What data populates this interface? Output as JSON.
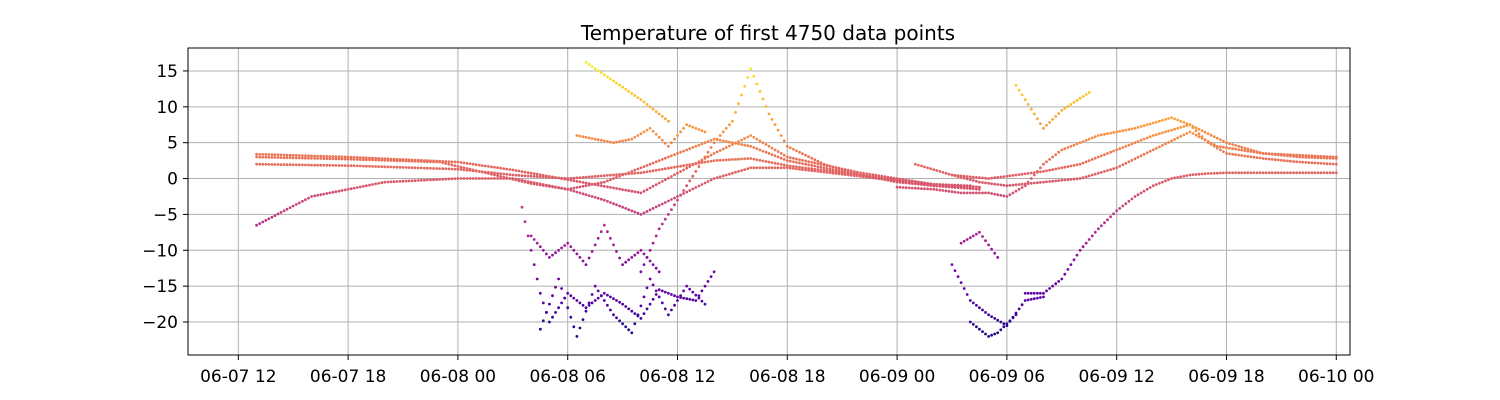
{
  "chart_data": {
    "type": "scatter",
    "title": "Temperature of first 4750 data points",
    "xlabel": "",
    "ylabel": "",
    "x_type": "datetime",
    "xlim": [
      "2023-06-07T09:15",
      "2023-06-10T00:45"
    ],
    "ylim": [
      -24.6,
      18.2
    ],
    "x_ticks": [
      {
        "value": "2023-06-07T12:00",
        "label": "06-07 12"
      },
      {
        "value": "2023-06-07T18:00",
        "label": "06-07 18"
      },
      {
        "value": "2023-06-08T00:00",
        "label": "06-08 00"
      },
      {
        "value": "2023-06-08T06:00",
        "label": "06-08 06"
      },
      {
        "value": "2023-06-08T12:00",
        "label": "06-08 12"
      },
      {
        "value": "2023-06-08T18:00",
        "label": "06-08 18"
      },
      {
        "value": "2023-06-09T00:00",
        "label": "06-09 00"
      },
      {
        "value": "2023-06-09T06:00",
        "label": "06-09 06"
      },
      {
        "value": "2023-06-09T12:00",
        "label": "06-09 12"
      },
      {
        "value": "2023-06-09T18:00",
        "label": "06-09 18"
      },
      {
        "value": "2023-06-10T00:00",
        "label": "06-10 00"
      }
    ],
    "y_ticks": [
      {
        "value": 15,
        "label": "15"
      },
      {
        "value": 10,
        "label": "10"
      },
      {
        "value": 5,
        "label": "5"
      },
      {
        "value": 0,
        "label": "0"
      },
      {
        "value": -5,
        "label": "−5"
      },
      {
        "value": -10,
        "label": "−10"
      },
      {
        "value": -15,
        "label": "−15"
      },
      {
        "value": -20,
        "label": "−20"
      }
    ],
    "grid": true,
    "colormap": "plasma",
    "color_range": [
      -23,
      16.5
    ],
    "series": [
      {
        "x": [
          "2023-06-07T13:00",
          "2023-06-07T18:00",
          "2023-06-08T00:00",
          "2023-06-08T03:00",
          "2023-06-08T06:00",
          "2023-06-08T10:00",
          "2023-06-08T14:00",
          "2023-06-08T16:00",
          "2023-06-08T18:00",
          "2023-06-08T22:00",
          "2023-06-09T02:00",
          "2023-06-09T03:30",
          "2023-06-09T04:30"
        ],
        "y": [
          2.0,
          1.8,
          1.3,
          0.5,
          0.0,
          0.8,
          2.5,
          2.8,
          1.8,
          0.5,
          -0.8,
          -1.0,
          -1.2
        ]
      },
      {
        "x": [
          "2023-06-07T13:00",
          "2023-06-07T18:00",
          "2023-06-08T00:00",
          "2023-06-08T03:00",
          "2023-06-08T05:00",
          "2023-06-08T10:00",
          "2023-06-08T14:00",
          "2023-06-08T16:00",
          "2023-06-08T18:00",
          "2023-06-08T22:00",
          "2023-06-09T02:00",
          "2023-06-09T04:00"
        ],
        "y": [
          3.4,
          3.0,
          2.3,
          1.2,
          0.3,
          -2.0,
          3.5,
          6.0,
          3.0,
          0.8,
          -0.8,
          -1.0
        ]
      },
      {
        "x": [
          "2023-06-07T13:00",
          "2023-06-07T18:00",
          "2023-06-07T23:00",
          "2023-06-08T02:00",
          "2023-06-08T04:00",
          "2023-06-08T06:00",
          "2023-06-08T08:00",
          "2023-06-08T10:00",
          "2023-06-08T12:00",
          "2023-06-08T14:00",
          "2023-06-08T16:00",
          "2023-06-08T18:00",
          "2023-06-08T22:00",
          "2023-06-09T02:00",
          "2023-06-09T04:00"
        ],
        "y": [
          3.0,
          2.7,
          2.3,
          0.5,
          -0.7,
          -1.5,
          -0.5,
          1.5,
          3.5,
          5.5,
          4.5,
          2.5,
          0.5,
          -1.0,
          -1.3
        ]
      },
      {
        "x": [
          "2023-06-07T13:00",
          "2023-06-07T16:00",
          "2023-06-07T20:00",
          "2023-06-08T00:00",
          "2023-06-08T03:00",
          "2023-06-08T06:00",
          "2023-06-08T08:00",
          "2023-06-08T10:00",
          "2023-06-08T12:00",
          "2023-06-08T14:00",
          "2023-06-08T16:00",
          "2023-06-08T18:00",
          "2023-06-08T22:00",
          "2023-06-09T02:00",
          "2023-06-09T04:30"
        ],
        "y": [
          -6.5,
          -2.5,
          -0.5,
          0.0,
          0.0,
          -1.5,
          -3.0,
          -5.0,
          -2.5,
          0.0,
          1.5,
          1.5,
          0.3,
          -1.0,
          -1.5
        ]
      },
      {
        "x": [
          "2023-06-08T10:00",
          "2023-06-08T11:00",
          "2023-06-08T12:00",
          "2023-06-08T13:00",
          "2023-06-08T14:00",
          "2023-06-08T15:00",
          "2023-06-08T16:00",
          "2023-06-08T17:00",
          "2023-06-08T18:00",
          "2023-06-08T20:00",
          "2023-06-08T22:00",
          "2023-06-09T00:00",
          "2023-06-09T02:00"
        ],
        "y": [
          -13.0,
          -7.0,
          -3.0,
          1.0,
          5.0,
          8.0,
          15.3,
          9.0,
          4.5,
          2.0,
          0.5,
          -0.5,
          -1.0
        ]
      },
      {
        "x": [
          "2023-06-08T06:30",
          "2023-06-08T07:30",
          "2023-06-08T08:30",
          "2023-06-08T09:30",
          "2023-06-08T10:30",
          "2023-06-08T11:30",
          "2023-06-08T12:30",
          "2023-06-08T13:30"
        ],
        "y": [
          6.0,
          5.5,
          5.0,
          5.5,
          7.0,
          4.5,
          7.5,
          6.5
        ]
      },
      {
        "x": [
          "2023-06-08T03:30",
          "2023-06-08T04:30",
          "2023-06-08T05:00",
          "2023-06-08T05:30",
          "2023-06-08T06:00",
          "2023-06-08T07:00",
          "2023-06-08T08:00",
          "2023-06-08T09:00",
          "2023-06-08T10:00",
          "2023-06-08T11:00",
          "2023-06-08T12:00",
          "2023-06-08T13:00",
          "2023-06-08T14:00"
        ],
        "y": [
          -4.0,
          -16.0,
          -20.0,
          -18.0,
          -16.0,
          -18.0,
          -16.0,
          -17.5,
          -19.5,
          -15.5,
          -16.5,
          -17.0,
          -13.0
        ]
      },
      {
        "x": [
          "2023-06-08T04:30",
          "2023-06-08T05:30",
          "2023-06-08T06:30",
          "2023-06-08T07:30",
          "2023-06-08T08:30",
          "2023-06-08T09:30",
          "2023-06-08T10:30",
          "2023-06-08T11:30",
          "2023-06-08T12:30",
          "2023-06-08T13:30"
        ],
        "y": [
          -21.0,
          -14.0,
          -22.0,
          -15.0,
          -19.0,
          -21.5,
          -14.0,
          -19.0,
          -15.0,
          -17.5
        ]
      },
      {
        "x": [
          "2023-06-08T04:00",
          "2023-06-08T05:00",
          "2023-06-08T06:00",
          "2023-06-08T07:00",
          "2023-06-08T08:00",
          "2023-06-08T09:00",
          "2023-06-08T10:00",
          "2023-06-08T11:00"
        ],
        "y": [
          -8.0,
          -11.0,
          -9.0,
          -12.0,
          -6.5,
          -12.0,
          -10.0,
          -13.0
        ]
      },
      {
        "x": [
          "2023-06-08T07:00",
          "2023-06-08T10:00",
          "2023-06-08T11:30"
        ],
        "y": [
          16.2,
          11.0,
          8.0
        ]
      },
      {
        "x": [
          "2023-06-09T00:00",
          "2023-06-09T02:00",
          "2023-06-09T03:30",
          "2023-06-09T05:00",
          "2023-06-09T06:00",
          "2023-06-09T07:00",
          "2023-06-09T08:00",
          "2023-06-09T09:00",
          "2023-06-09T11:00",
          "2023-06-09T13:00",
          "2023-06-09T15:00",
          "2023-06-09T16:00",
          "2023-06-09T18:00",
          "2023-06-09T20:00",
          "2023-06-09T22:00",
          "2023-06-10T00:00"
        ],
        "y": [
          -1.2,
          -1.5,
          -2.0,
          -2.0,
          -2.5,
          -1.0,
          2.0,
          4.0,
          6.0,
          7.0,
          8.5,
          7.5,
          5.0,
          3.5,
          3.0,
          2.8
        ]
      },
      {
        "x": [
          "2023-06-09T03:00",
          "2023-06-09T05:00",
          "2023-06-09T06:30",
          "2023-06-09T08:00",
          "2023-06-09T10:00",
          "2023-06-09T12:00",
          "2023-06-09T14:00",
          "2023-06-09T16:00",
          "2023-06-09T17:00",
          "2023-06-09T18:00",
          "2023-06-09T20:00",
          "2023-06-09T22:00",
          "2023-06-10T00:00"
        ],
        "y": [
          0.5,
          0.0,
          0.5,
          1.0,
          2.0,
          4.0,
          6.0,
          7.5,
          5.0,
          3.5,
          2.8,
          2.3,
          2.0
        ]
      },
      {
        "x": [
          "2023-06-09T01:00",
          "2023-06-09T03:00",
          "2023-06-09T04:30",
          "2023-06-09T06:00",
          "2023-06-09T08:00",
          "2023-06-09T10:00",
          "2023-06-09T12:00",
          "2023-06-09T14:00",
          "2023-06-09T16:00",
          "2023-06-09T17:30",
          "2023-06-09T20:00",
          "2023-06-10T00:00"
        ],
        "y": [
          2.0,
          0.5,
          -0.5,
          -1.0,
          -0.5,
          0.0,
          1.5,
          4.0,
          6.5,
          4.5,
          3.5,
          3.0
        ]
      },
      {
        "x": [
          "2023-06-09T07:00",
          "2023-06-09T08:00",
          "2023-06-09T09:00",
          "2023-06-09T10:00",
          "2023-06-09T11:00",
          "2023-06-09T12:00",
          "2023-06-09T13:00",
          "2023-06-09T14:00",
          "2023-06-09T15:00",
          "2023-06-09T16:00",
          "2023-06-09T17:00",
          "2023-06-09T18:00",
          "2023-06-09T19:00",
          "2023-06-09T20:00",
          "2023-06-10T00:00"
        ],
        "y": [
          -16.0,
          -16.0,
          -14.0,
          -10.0,
          -7.0,
          -4.5,
          -2.5,
          -1.0,
          0.0,
          0.5,
          0.7,
          0.8,
          0.8,
          0.8,
          0.8
        ]
      },
      {
        "x": [
          "2023-06-09T03:00",
          "2023-06-09T04:00",
          "2023-06-09T05:00",
          "2023-06-09T06:00",
          "2023-06-09T07:00",
          "2023-06-09T08:00"
        ],
        "y": [
          -12.0,
          -17.0,
          -19.0,
          -20.5,
          -17.0,
          -16.5
        ]
      },
      {
        "x": [
          "2023-06-09T04:00",
          "2023-06-09T05:00",
          "2023-06-09T05:30",
          "2023-06-09T06:30"
        ],
        "y": [
          -20.0,
          -22.0,
          -21.5,
          -19.0
        ]
      },
      {
        "x": [
          "2023-06-09T03:30",
          "2023-06-09T04:30",
          "2023-06-09T05:30"
        ],
        "y": [
          -9.0,
          -7.5,
          -11.0
        ]
      },
      {
        "x": [
          "2023-06-09T06:30",
          "2023-06-09T08:00",
          "2023-06-09T09:00",
          "2023-06-09T10:30"
        ],
        "y": [
          13.0,
          7.0,
          9.5,
          12.0
        ]
      }
    ]
  }
}
